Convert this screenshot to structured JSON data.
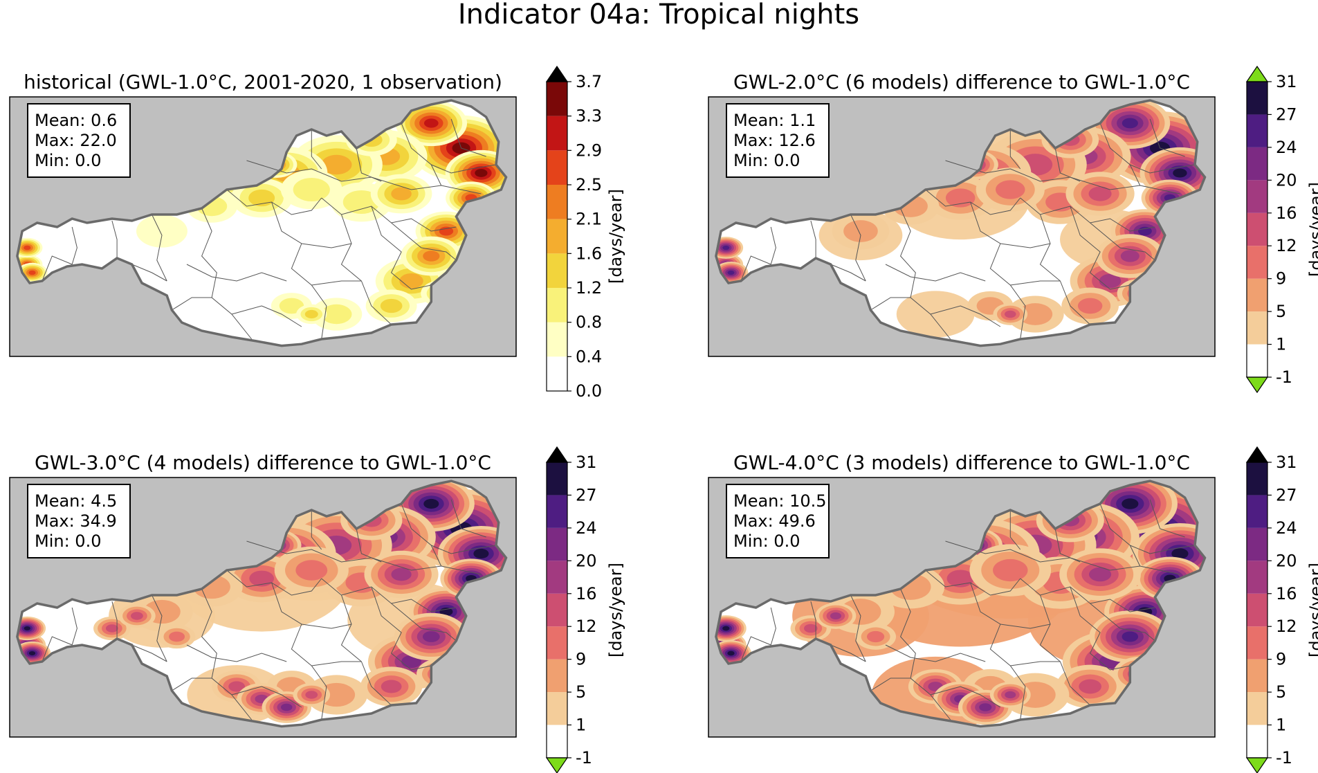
{
  "figure": {
    "title": "Indicator 04a: Tropical nights"
  },
  "chart_data": [
    {
      "type": "heatmap",
      "title": "historical (GWL-1.0°C, 2001-2020, 1 observation)",
      "stats": [
        "Mean: 0.6",
        "Max: 22.0",
        "Min: 0.0"
      ],
      "colorbar": {
        "label": "[days/year]",
        "ticks": [
          "0.0",
          "0.4",
          "0.8",
          "1.2",
          "1.6",
          "2.1",
          "2.5",
          "2.9",
          "3.3",
          "3.7"
        ],
        "colors": [
          "#ffffff",
          "#ffffc4",
          "#f9f27a",
          "#f2d43c",
          "#f4ad2f",
          "#ee7d21",
          "#e4431a",
          "#c21515",
          "#7a0808",
          "#1a0505"
        ],
        "extend": "max",
        "extend_color": "#000000"
      },
      "hotspot_scheme": "hot",
      "coverage": 0.35
    },
    {
      "type": "heatmap",
      "title": "GWL-2.0°C (6 models) difference to GWL-1.0°C",
      "stats": [
        "Mean: 1.1",
        "Max: 12.6",
        "Min: 0.0"
      ],
      "colorbar": {
        "label": "[days/year]",
        "ticks": [
          "-1",
          "1",
          "5",
          "9",
          "12",
          "16",
          "20",
          "24",
          "27",
          "31"
        ],
        "colors": [
          "#ffffff",
          "#f4cd9a",
          "#f0a070",
          "#e8706a",
          "#cd4f71",
          "#a23a80",
          "#7c2a83",
          "#4e1d82",
          "#1c1040"
        ],
        "extend": "both",
        "extend_color": "#7ddb1a"
      },
      "hotspot_scheme": "magma",
      "coverage": 0.55
    },
    {
      "type": "heatmap",
      "title": "GWL-3.0°C (4 models) difference to GWL-1.0°C",
      "stats": [
        "Mean: 4.5",
        "Max: 34.9",
        "Min: 0.0"
      ],
      "colorbar": {
        "label": "[days/year]",
        "ticks": [
          "-1",
          "1",
          "5",
          "9",
          "12",
          "16",
          "20",
          "24",
          "27",
          "31"
        ],
        "colors": [
          "#ffffff",
          "#f4cd9a",
          "#f0a070",
          "#e8706a",
          "#cd4f71",
          "#a23a80",
          "#7c2a83",
          "#4e1d82",
          "#1c1040"
        ],
        "extend": "both",
        "extend_color": "#000000",
        "extend_low_color": "#7ddb1a"
      },
      "hotspot_scheme": "magma",
      "coverage": 0.7
    },
    {
      "type": "heatmap",
      "title": "GWL-4.0°C (3 models) difference to GWL-1.0°C",
      "stats": [
        "Mean: 10.5",
        "Max: 49.6",
        "Min: 0.0"
      ],
      "colorbar": {
        "label": "[days/year]",
        "ticks": [
          "-1",
          "1",
          "5",
          "9",
          "12",
          "16",
          "20",
          "24",
          "27",
          "31"
        ],
        "colors": [
          "#ffffff",
          "#f4cd9a",
          "#f0a070",
          "#e8706a",
          "#cd4f71",
          "#a23a80",
          "#7c2a83",
          "#4e1d82",
          "#1c1040"
        ],
        "extend": "both",
        "extend_color": "#000000",
        "extend_low_color": "#7ddb1a"
      },
      "hotspot_scheme": "magma",
      "coverage": 0.9
    }
  ]
}
